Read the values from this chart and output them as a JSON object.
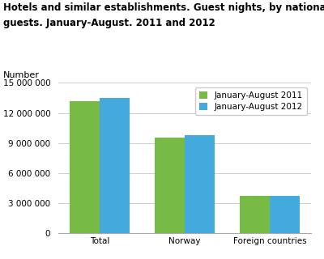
{
  "title_line1": "Hotels and similar establishments. Guest nights, by nationality of the",
  "title_line2": "guests. January-August. 2011 and 2012",
  "ylabel": "Number",
  "categories": [
    "Total",
    "Norway",
    "Foreign countries"
  ],
  "values_2011": [
    13200000,
    9500000,
    3700000
  ],
  "values_2012": [
    13500000,
    9800000,
    3750000
  ],
  "color_2011": "#77bb44",
  "color_2012": "#44aadd",
  "legend_2011": "January-August 2011",
  "legend_2012": "January-August 2012",
  "ylim": [
    0,
    15000000
  ],
  "yticks": [
    0,
    3000000,
    6000000,
    9000000,
    12000000,
    15000000
  ],
  "ytick_labels": [
    "0",
    "3 000 000",
    "6 000 000",
    "9 000 000",
    "12 000 000",
    "15 000 000"
  ],
  "background_color": "#ffffff",
  "grid_color": "#cccccc",
  "title_fontsize": 8.5,
  "label_fontsize": 8,
  "tick_fontsize": 7.5,
  "legend_fontsize": 7.5,
  "bar_width": 0.35
}
